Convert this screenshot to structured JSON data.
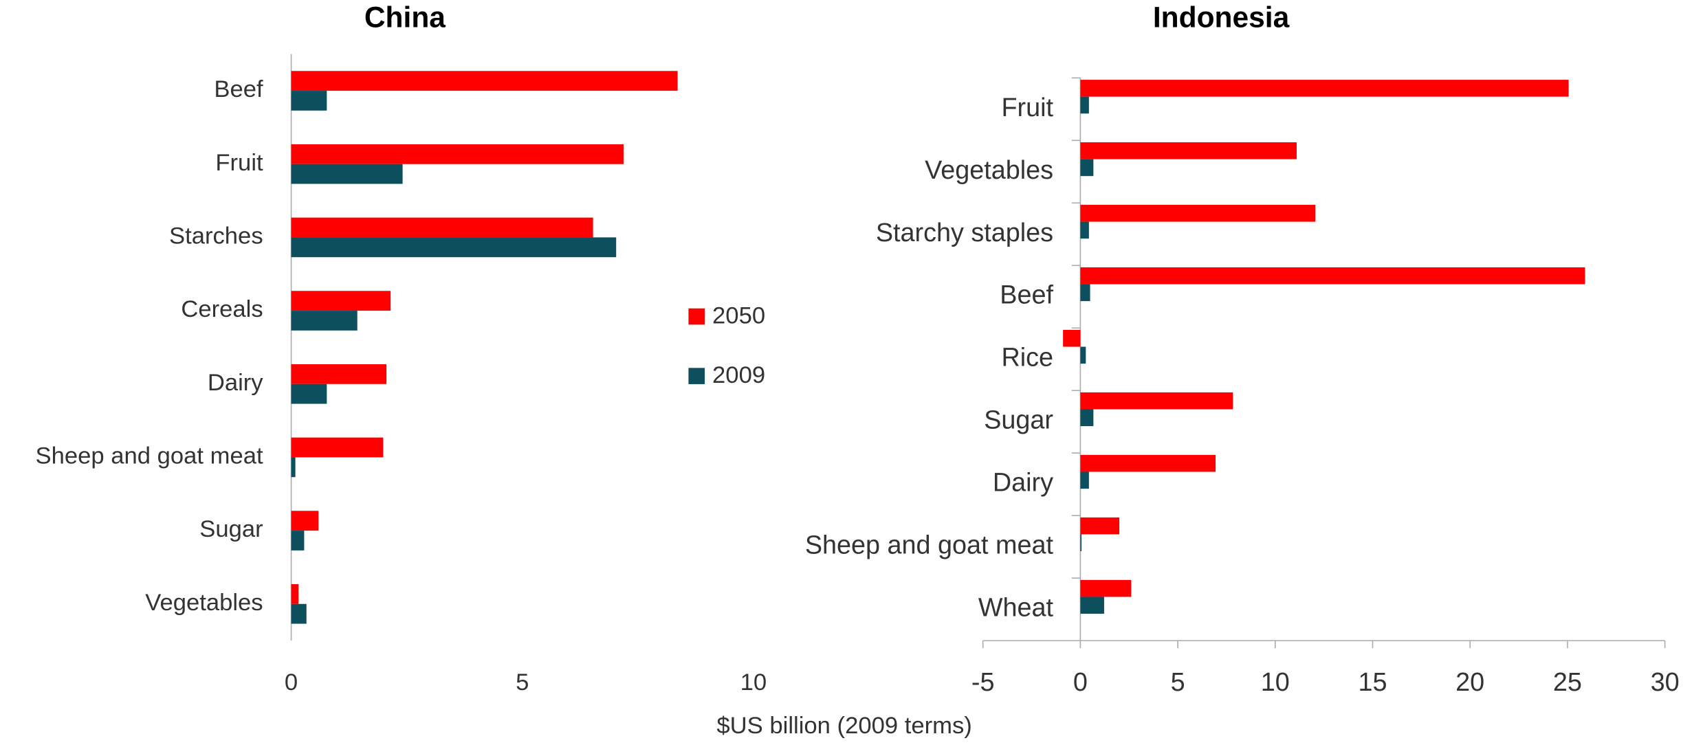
{
  "chart_data": [
    {
      "type": "bar",
      "orientation": "horizontal",
      "title": "China",
      "categories": [
        "Beef",
        "Fruit",
        "Starches",
        "Cereals",
        "Dairy",
        "Sheep and goat meat",
        "Sugar",
        "Vegetables"
      ],
      "series": [
        {
          "name": "2050",
          "color": "#ff0000",
          "values": [
            8.36,
            7.19,
            6.53,
            2.15,
            2.06,
            1.99,
            0.59,
            0.16
          ]
        },
        {
          "name": "2009",
          "color": "#0d4f5c",
          "values": [
            0.77,
            2.41,
            7.03,
            1.43,
            0.77,
            0.09,
            0.28,
            0.33
          ]
        }
      ],
      "xlim": [
        0,
        10
      ],
      "xticks": [
        0,
        5,
        10
      ],
      "legend": "right"
    },
    {
      "type": "bar",
      "orientation": "horizontal",
      "title": "Indonesia",
      "categories": [
        "Fruit",
        "Vegetables",
        "Starchy staples",
        "Beef",
        "Rice",
        "Sugar",
        "Dairy",
        "Sheep and goat meat",
        "Wheat"
      ],
      "series": [
        {
          "name": "2050",
          "color": "#ff0000",
          "values": [
            25.06,
            11.1,
            12.06,
            25.9,
            -0.89,
            7.83,
            6.94,
            2.0,
            2.61
          ]
        },
        {
          "name": "2009",
          "color": "#0d4f5c",
          "values": [
            0.44,
            0.67,
            0.44,
            0.5,
            0.28,
            0.67,
            0.44,
            0.06,
            1.22
          ]
        }
      ],
      "xlim": [
        -5,
        30
      ],
      "xticks": [
        -5,
        0,
        5,
        10,
        15,
        20,
        25,
        30
      ]
    }
  ],
  "x_label": "$US billion (2009 terms)"
}
